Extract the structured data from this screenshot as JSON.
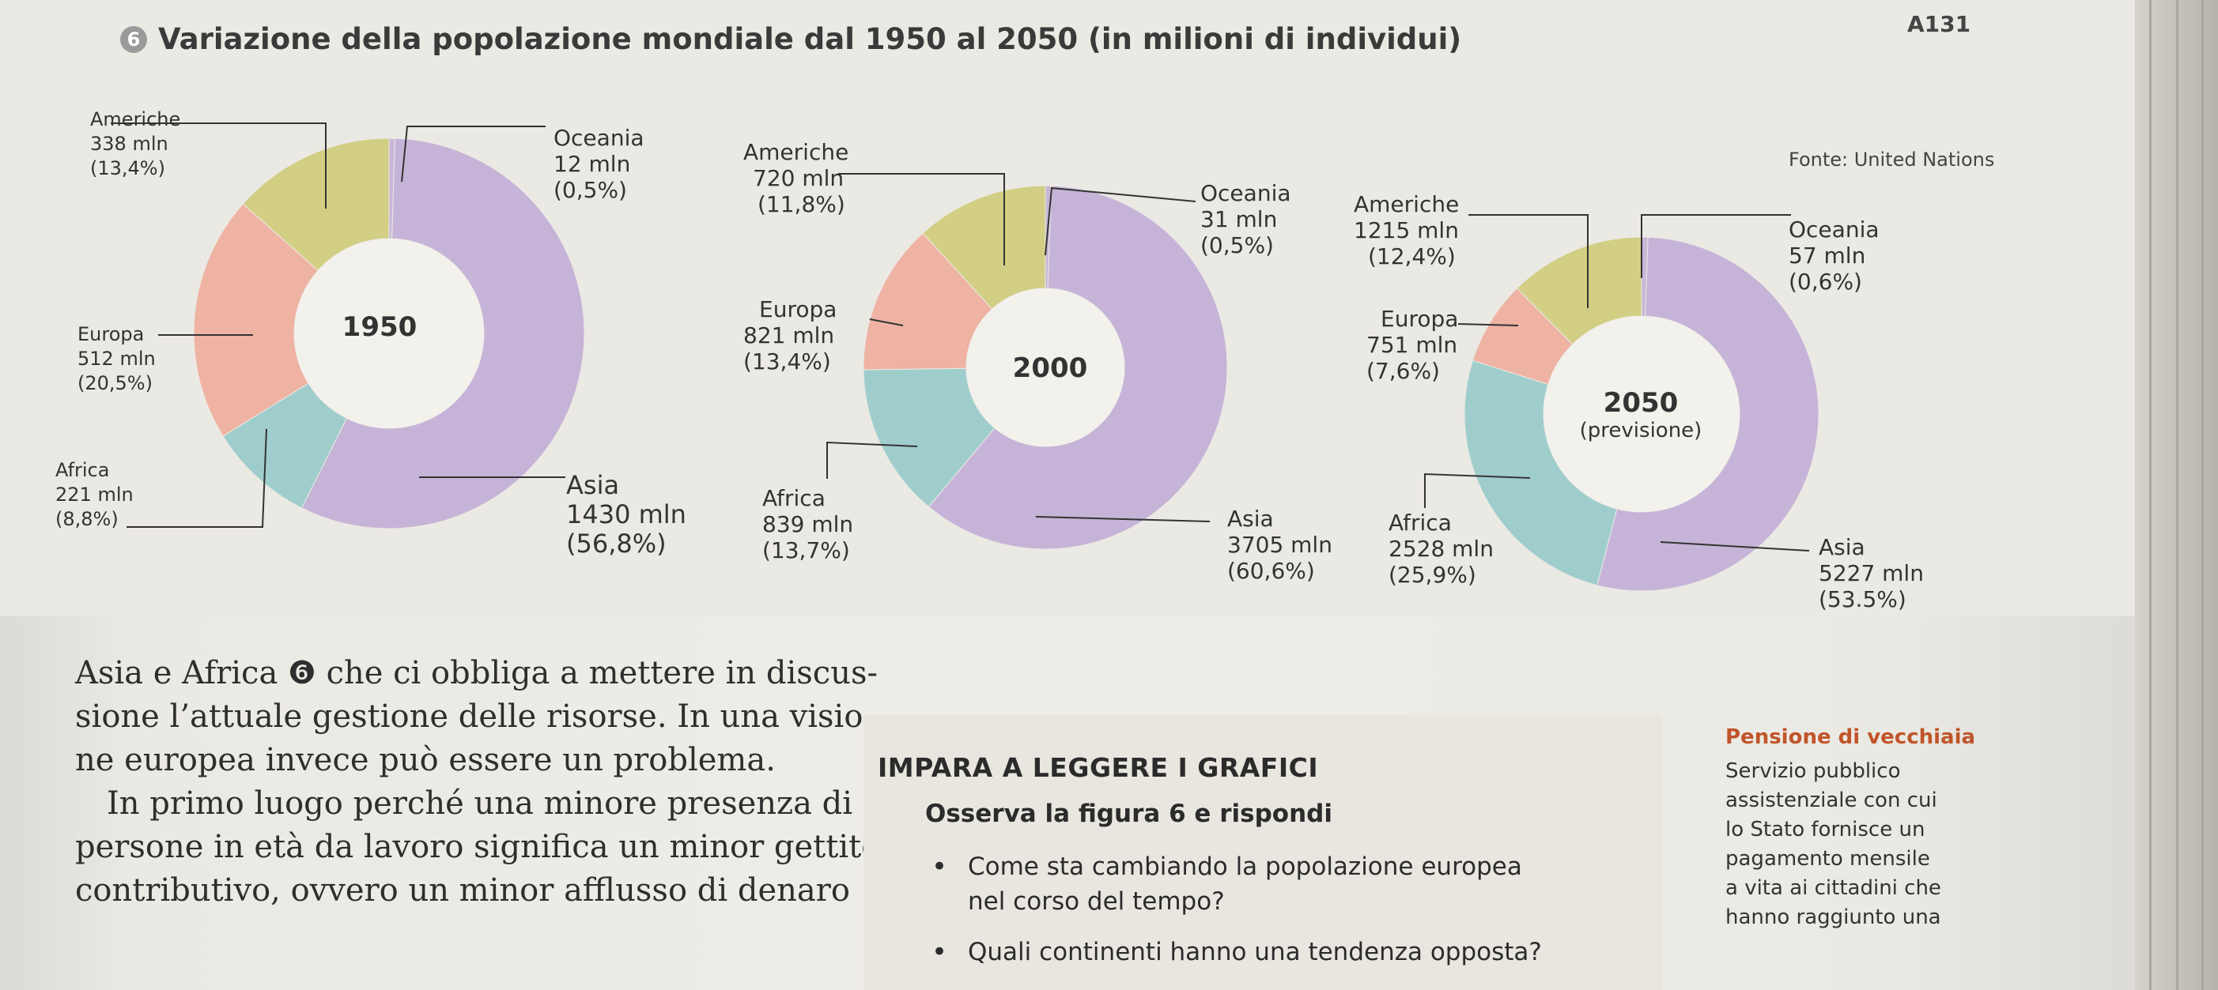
{
  "page_number": "A131",
  "figure": {
    "number": "6",
    "title": "Variazione della popolazione mondiale dal 1950 al 2050 (in milioni di individui)",
    "source": "Fonte: United Nations"
  },
  "colors": {
    "americhe": "#d2cf84",
    "oceania": "#c8b7d6",
    "asia": "#c6b4d8",
    "africa": "#9fcdcc",
    "europa": "#eeb3a3",
    "hole": "#f3f1ec",
    "accent": "#c0552a"
  },
  "chart_data": [
    {
      "type": "pie",
      "title": "1950",
      "categories": [
        "Americhe",
        "Oceania",
        "Asia",
        "Africa",
        "Europa"
      ],
      "values": [
        338,
        12,
        1430,
        221,
        512
      ],
      "shares": [
        "13,4%",
        "0,5%",
        "56,8%",
        "8,8%",
        "20,5%"
      ],
      "labels": [
        {
          "name": "Americhe",
          "value": "338 mln",
          "share": "(13,4%)"
        },
        {
          "name": "Oceania",
          "value": "12 mln",
          "share": "(0,5%)"
        },
        {
          "name": "Asia",
          "value": "1430 mln",
          "share": "(56,8%)"
        },
        {
          "name": "Africa",
          "value": "221 mln",
          "share": "(8,8%)"
        },
        {
          "name": "Europa",
          "value": "512 mln",
          "share": "(20,5%)"
        }
      ]
    },
    {
      "type": "pie",
      "title": "2000",
      "categories": [
        "Americhe",
        "Oceania",
        "Asia",
        "Africa",
        "Europa"
      ],
      "values": [
        720,
        31,
        3705,
        839,
        821
      ],
      "shares": [
        "11,8%",
        "0,5%",
        "60,6%",
        "13,7%",
        "13,4%"
      ],
      "labels": [
        {
          "name": "Americhe",
          "value": "720 mln",
          "share": "(11,8%)"
        },
        {
          "name": "Oceania",
          "value": "31 mln",
          "share": "(0,5%)"
        },
        {
          "name": "Asia",
          "value": "3705 mln",
          "share": "(60,6%)"
        },
        {
          "name": "Africa",
          "value": "839 mln",
          "share": "(13,7%)"
        },
        {
          "name": "Europa",
          "value": "821 mln",
          "share": "(13,4%)"
        }
      ]
    },
    {
      "type": "pie",
      "title": "2050",
      "subtitle": "(previsione)",
      "categories": [
        "Americhe",
        "Oceania",
        "Asia",
        "Africa",
        "Europa"
      ],
      "values": [
        1215,
        57,
        5227,
        2528,
        751
      ],
      "shares": [
        "12,4%",
        "0,6%",
        "53,5%",
        "25,9%",
        "7,6%"
      ],
      "labels": [
        {
          "name": "Americhe",
          "value": "1215 mln",
          "share": "(12,4%)"
        },
        {
          "name": "Oceania",
          "value": "57 mln",
          "share": "(0,6%)"
        },
        {
          "name": "Asia",
          "value": "5227 mln",
          "share": "(53.5%)"
        },
        {
          "name": "Africa",
          "value": "2528 mln",
          "share": "(25,9%)"
        },
        {
          "name": "Europa",
          "value": "751 mln",
          "share": "(7,6%)"
        }
      ]
    }
  ],
  "body": {
    "lines": [
      "Asia e Africa ❻ che ci obbliga a mettere in discus-",
      "sione l’attuale gestione delle risorse. In una visio-",
      "ne europea invece può essere un problema.",
      "In primo luogo perché una minore presenza di",
      "persone in età da lavoro significa un minor gettito",
      "contributivo, ovvero un minor afflusso di denaro"
    ]
  },
  "box": {
    "title": "IMPARA A LEGGERE I GRAFICI",
    "question": "Osserva la figura 6 e rispondi",
    "items": [
      "Come sta cambiando la popolazione europea",
      "Quali continenti hanno una tendenza opposta?"
    ],
    "item1_cont": "nel corso del tempo?"
  },
  "glossary": {
    "term": "Pensione di vecchiaia",
    "lines": [
      "Servizio pubblico",
      "assistenziale con cui",
      "lo Stato fornisce un",
      "pagamento mensile",
      "a vita ai cittadini che",
      "hanno raggiunto una"
    ]
  }
}
